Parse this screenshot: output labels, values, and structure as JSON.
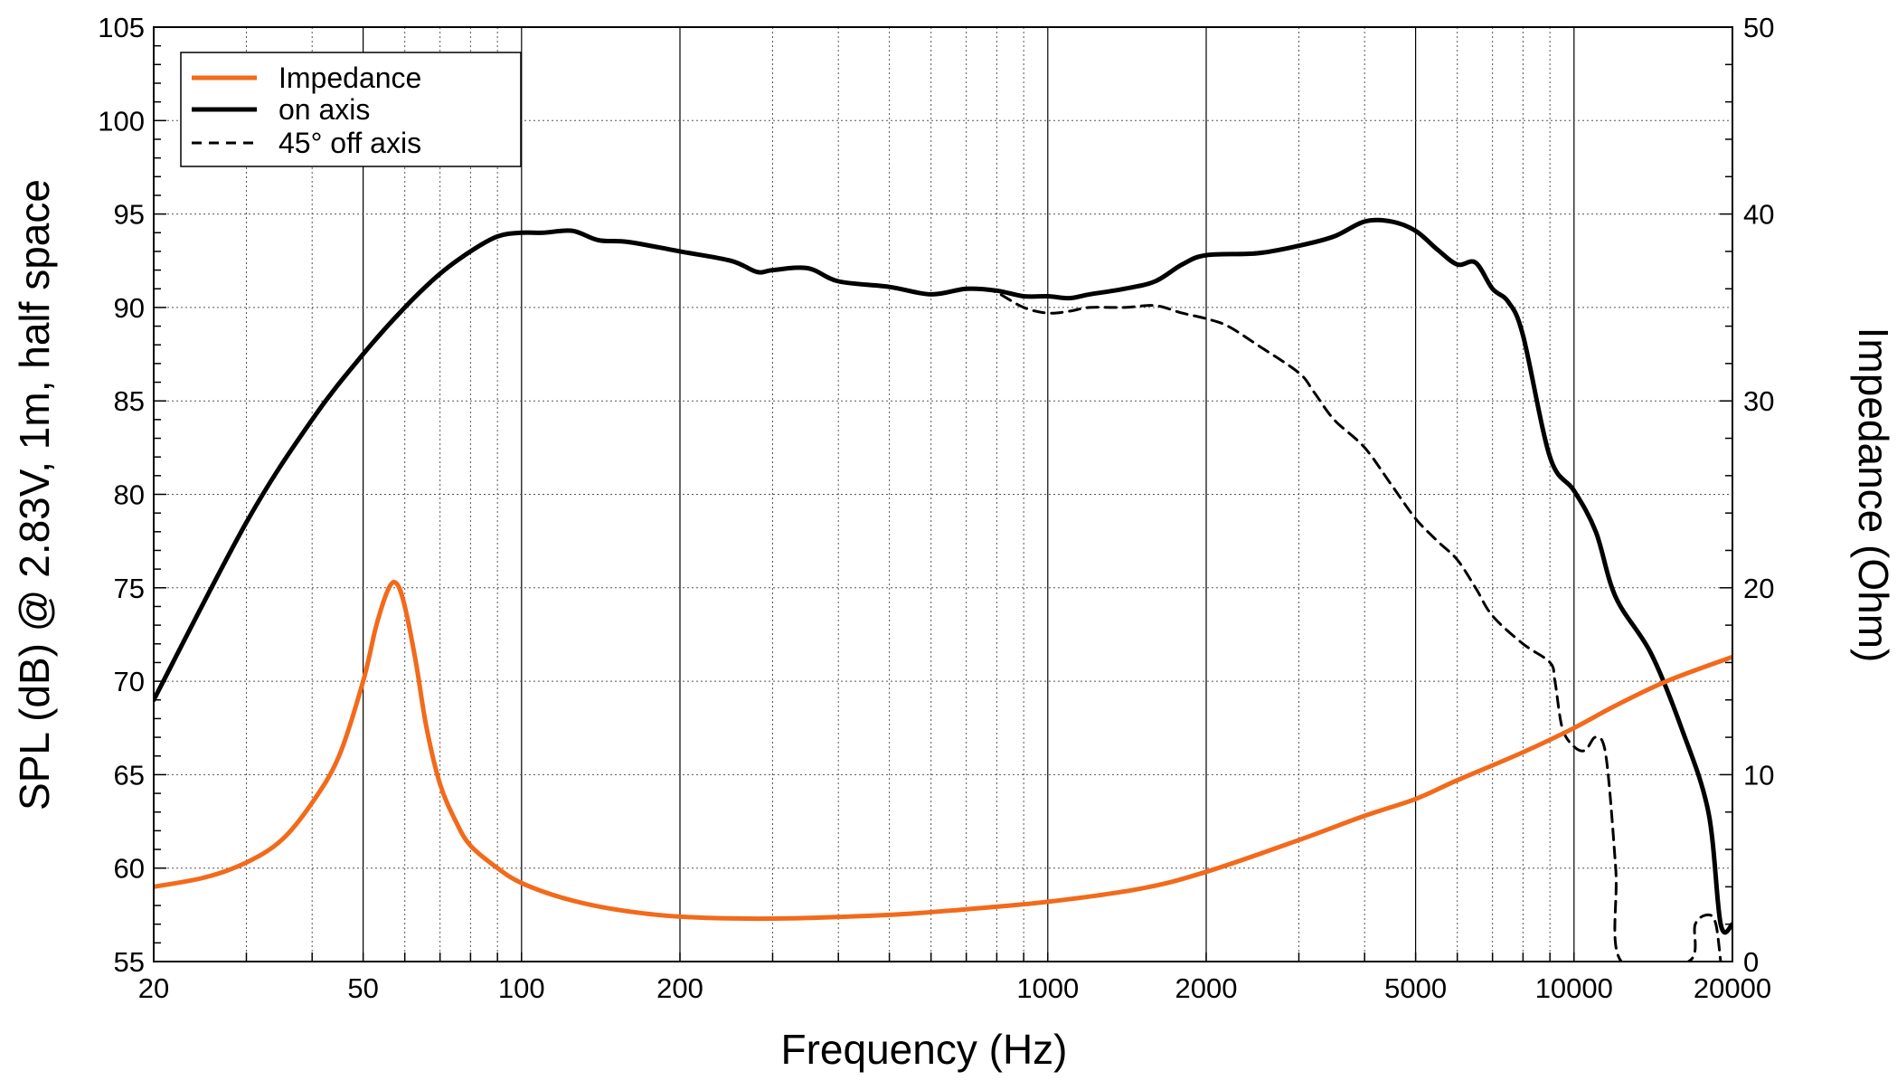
{
  "chart_data": {
    "type": "line",
    "title": "",
    "xlabel": "Frequency (Hz)",
    "ylabel": "SPL (dB) @ 2.83V, 1m, half space",
    "y2label": "Impedance (Ohm)",
    "xscale": "log",
    "xlim": [
      20,
      20000
    ],
    "ylim": [
      55,
      105
    ],
    "y2lim": [
      0,
      50
    ],
    "grid": true,
    "legend_position": "top-left",
    "x_ticks": [
      20,
      50,
      100,
      200,
      1000,
      2000,
      5000,
      10000,
      20000
    ],
    "x_tick_labels": [
      "20",
      "50",
      "100",
      "200",
      "1000",
      "2000",
      "5000",
      "10000",
      "20000"
    ],
    "y_ticks": [
      55,
      60,
      65,
      70,
      75,
      80,
      85,
      90,
      95,
      100,
      105
    ],
    "y_tick_labels": [
      "55",
      "60",
      "65",
      "70",
      "75",
      "80",
      "85",
      "90",
      "95",
      "100",
      "105"
    ],
    "y2_ticks": [
      0,
      10,
      20,
      30,
      40,
      50
    ],
    "y2_tick_labels": [
      "0",
      "10",
      "20",
      "30",
      "40",
      "50"
    ],
    "series": [
      {
        "name": "Impedance",
        "axis": "right",
        "color": "#f26a1b",
        "style": "solid",
        "x": [
          20,
          25,
          30,
          35,
          40,
          45,
          50,
          53,
          56,
          58,
          60,
          63,
          66,
          70,
          75,
          80,
          90,
          100,
          120,
          150,
          200,
          300,
          500,
          700,
          1000,
          1500,
          2000,
          3000,
          4000,
          5000,
          6000,
          8000,
          10000,
          12000,
          15000,
          20000
        ],
        "values": [
          4.0,
          4.5,
          5.3,
          6.5,
          8.5,
          11.0,
          15.0,
          18.0,
          20.0,
          20.2,
          19.0,
          16.0,
          12.5,
          9.5,
          7.5,
          6.2,
          5.0,
          4.2,
          3.4,
          2.8,
          2.4,
          2.3,
          2.5,
          2.8,
          3.2,
          3.9,
          4.8,
          6.5,
          7.8,
          8.7,
          9.7,
          11.2,
          12.5,
          13.7,
          15.0,
          16.3
        ]
      },
      {
        "name": "on axis",
        "axis": "left",
        "color": "#000000",
        "style": "solid",
        "x": [
          20,
          30,
          40,
          50,
          60,
          70,
          80,
          90,
          100,
          110,
          125,
          140,
          160,
          200,
          250,
          280,
          300,
          350,
          400,
          500,
          600,
          700,
          800,
          900,
          1000,
          1100,
          1200,
          1400,
          1600,
          1800,
          2000,
          2500,
          3000,
          3500,
          4000,
          4500,
          5000,
          5500,
          6000,
          6500,
          7000,
          7500,
          8000,
          9000,
          10000,
          11000,
          12000,
          14000,
          16000,
          18000,
          19000,
          20000
        ],
        "values": [
          69.0,
          78.5,
          84.0,
          87.5,
          90.0,
          91.8,
          93.0,
          93.8,
          94.0,
          94.0,
          94.1,
          93.6,
          93.5,
          93.0,
          92.5,
          91.9,
          92.0,
          92.1,
          91.4,
          91.1,
          90.7,
          91.0,
          90.9,
          90.6,
          90.6,
          90.5,
          90.7,
          91.0,
          91.4,
          92.3,
          92.8,
          92.9,
          93.3,
          93.8,
          94.6,
          94.6,
          94.1,
          93.1,
          92.3,
          92.4,
          91.0,
          90.3,
          88.5,
          82.0,
          80.2,
          78.0,
          74.5,
          71.5,
          67.5,
          63.0,
          57.0,
          57.0
        ]
      },
      {
        "name": "45° off axis",
        "axis": "left",
        "color": "#000000",
        "style": "dashed",
        "x": [
          700,
          750,
          800,
          900,
          1000,
          1100,
          1200,
          1400,
          1600,
          1800,
          2000,
          2200,
          2500,
          3000,
          3200,
          3500,
          4000,
          4500,
          5000,
          5500,
          6000,
          6500,
          7000,
          8000,
          9000,
          9200,
          9500,
          10000,
          10500,
          11000,
          11500,
          12000,
          12300,
          16500,
          17000,
          18000,
          18600,
          19000
        ],
        "values": [
          91.0,
          91.0,
          90.8,
          90.0,
          89.7,
          89.8,
          90.0,
          90.0,
          90.1,
          89.7,
          89.4,
          89.0,
          88.0,
          86.5,
          85.5,
          84.0,
          82.5,
          80.5,
          78.7,
          77.5,
          76.5,
          75.0,
          73.5,
          72.0,
          71.0,
          70.0,
          67.5,
          66.5,
          66.3,
          67.0,
          66.0,
          60.0,
          55.0,
          55.0,
          57.0,
          57.5,
          57.0,
          55.0
        ]
      }
    ]
  }
}
